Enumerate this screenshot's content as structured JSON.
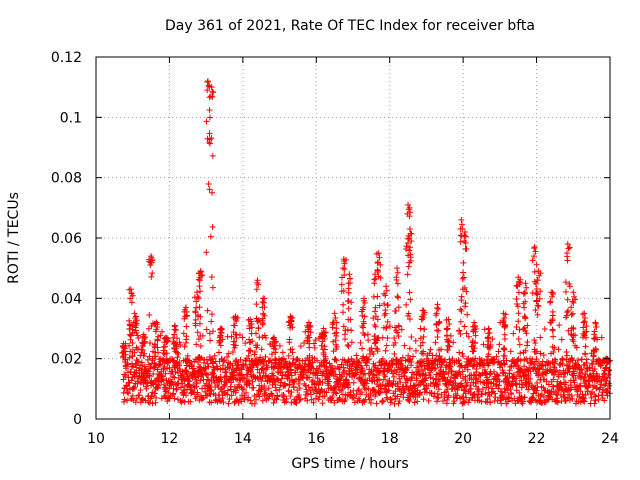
{
  "chart_data": {
    "type": "scatter",
    "title": "Day 361 of 2021, Rate Of TEC Index for receiver bfta",
    "xlabel": "GPS time / hours",
    "ylabel": "ROTI / TECUs",
    "xlim": [
      10,
      24
    ],
    "ylim": [
      0,
      0.12
    ],
    "xticks": [
      10,
      12,
      14,
      16,
      18,
      20,
      22,
      24
    ],
    "yticks": [
      0,
      0.02,
      0.04,
      0.06,
      0.08,
      0.1,
      0.12
    ],
    "ytick_labels": [
      "0",
      "0.02",
      "0.04",
      "0.06",
      "0.08",
      "0.1",
      "0.12"
    ],
    "grid": true,
    "marker": "+",
    "color": "#ff0000",
    "series": [
      {
        "name": "ROTI",
        "x_start": 10.75,
        "x_end": 24.0,
        "baseline_range": [
          0.005,
          0.02
        ],
        "spikes": [
          {
            "x": 10.75,
            "y": 0.025
          },
          {
            "x": 10.95,
            "y": 0.043
          },
          {
            "x": 11.05,
            "y": 0.035
          },
          {
            "x": 11.3,
            "y": 0.028
          },
          {
            "x": 11.5,
            "y": 0.054
          },
          {
            "x": 11.65,
            "y": 0.032
          },
          {
            "x": 11.9,
            "y": 0.027
          },
          {
            "x": 12.15,
            "y": 0.031
          },
          {
            "x": 12.45,
            "y": 0.037
          },
          {
            "x": 12.75,
            "y": 0.042
          },
          {
            "x": 12.85,
            "y": 0.049
          },
          {
            "x": 13.05,
            "y": 0.112
          },
          {
            "x": 13.15,
            "y": 0.11
          },
          {
            "x": 13.4,
            "y": 0.03
          },
          {
            "x": 13.8,
            "y": 0.034
          },
          {
            "x": 14.2,
            "y": 0.033
          },
          {
            "x": 14.4,
            "y": 0.046
          },
          {
            "x": 14.55,
            "y": 0.04
          },
          {
            "x": 14.85,
            "y": 0.027
          },
          {
            "x": 15.3,
            "y": 0.034
          },
          {
            "x": 15.8,
            "y": 0.032
          },
          {
            "x": 16.2,
            "y": 0.03
          },
          {
            "x": 16.5,
            "y": 0.035
          },
          {
            "x": 16.75,
            "y": 0.053
          },
          {
            "x": 16.9,
            "y": 0.048
          },
          {
            "x": 17.3,
            "y": 0.04
          },
          {
            "x": 17.6,
            "y": 0.048
          },
          {
            "x": 17.7,
            "y": 0.055
          },
          {
            "x": 17.9,
            "y": 0.044
          },
          {
            "x": 18.2,
            "y": 0.05
          },
          {
            "x": 18.5,
            "y": 0.071
          },
          {
            "x": 18.55,
            "y": 0.063
          },
          {
            "x": 18.9,
            "y": 0.036
          },
          {
            "x": 19.3,
            "y": 0.038
          },
          {
            "x": 19.6,
            "y": 0.033
          },
          {
            "x": 19.95,
            "y": 0.066
          },
          {
            "x": 20.05,
            "y": 0.062
          },
          {
            "x": 20.3,
            "y": 0.032
          },
          {
            "x": 20.7,
            "y": 0.03
          },
          {
            "x": 21.1,
            "y": 0.035
          },
          {
            "x": 21.5,
            "y": 0.047
          },
          {
            "x": 21.7,
            "y": 0.045
          },
          {
            "x": 21.95,
            "y": 0.057
          },
          {
            "x": 22.05,
            "y": 0.049
          },
          {
            "x": 22.4,
            "y": 0.042
          },
          {
            "x": 22.85,
            "y": 0.058
          },
          {
            "x": 23.0,
            "y": 0.042
          },
          {
            "x": 23.3,
            "y": 0.035
          },
          {
            "x": 23.6,
            "y": 0.032
          },
          {
            "x": 23.9,
            "y": 0.02
          }
        ]
      }
    ]
  }
}
